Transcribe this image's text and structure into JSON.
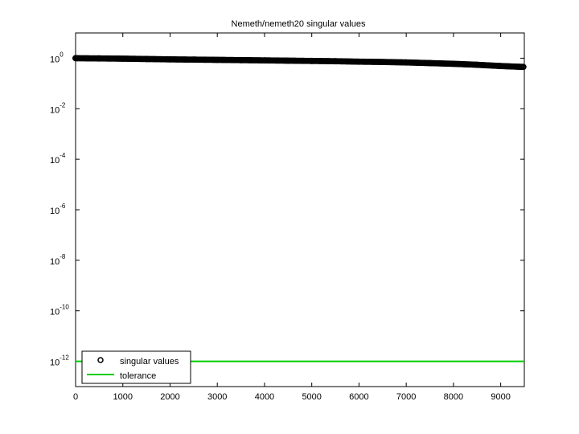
{
  "chart_data": {
    "type": "scatter",
    "title": "Nemeth/nemeth20 singular values",
    "xlabel": "",
    "ylabel": "",
    "yscale": "log",
    "xlim": [
      0,
      9500
    ],
    "ylim_exp": [
      -13,
      1
    ],
    "x_ticks": [
      "0",
      "1000",
      "2000",
      "3000",
      "4000",
      "5000",
      "6000",
      "7000",
      "8000",
      "9000"
    ],
    "x_tick_values": [
      0,
      1000,
      2000,
      3000,
      4000,
      5000,
      6000,
      7000,
      8000,
      9000
    ],
    "y_tick_base": "10",
    "y_tick_exponents": [
      "0",
      "-2",
      "-4",
      "-6",
      "-8",
      "-10",
      "-12"
    ],
    "y_tick_values": [
      0,
      -2,
      -4,
      -6,
      -8,
      -10,
      -12
    ],
    "grid": false,
    "legend_position": "bottom-left",
    "series": [
      {
        "name": "singular values",
        "marker": "circle",
        "color": "#000000",
        "points": [
          [
            0,
            1.0
          ],
          [
            500,
            0.98
          ],
          [
            1000,
            0.96
          ],
          [
            1500,
            0.93
          ],
          [
            2000,
            0.9
          ],
          [
            2500,
            0.88
          ],
          [
            3000,
            0.86
          ],
          [
            3500,
            0.84
          ],
          [
            4000,
            0.82
          ],
          [
            4500,
            0.8
          ],
          [
            5000,
            0.78
          ],
          [
            5500,
            0.76
          ],
          [
            6000,
            0.73
          ],
          [
            6500,
            0.71
          ],
          [
            7000,
            0.68
          ],
          [
            7500,
            0.64
          ],
          [
            8000,
            0.6
          ],
          [
            8500,
            0.55
          ],
          [
            9000,
            0.49
          ],
          [
            9506,
            0.45
          ]
        ]
      },
      {
        "name": "tolerance",
        "marker": "line",
        "color": "#00cc00",
        "value": 1e-12
      }
    ]
  }
}
